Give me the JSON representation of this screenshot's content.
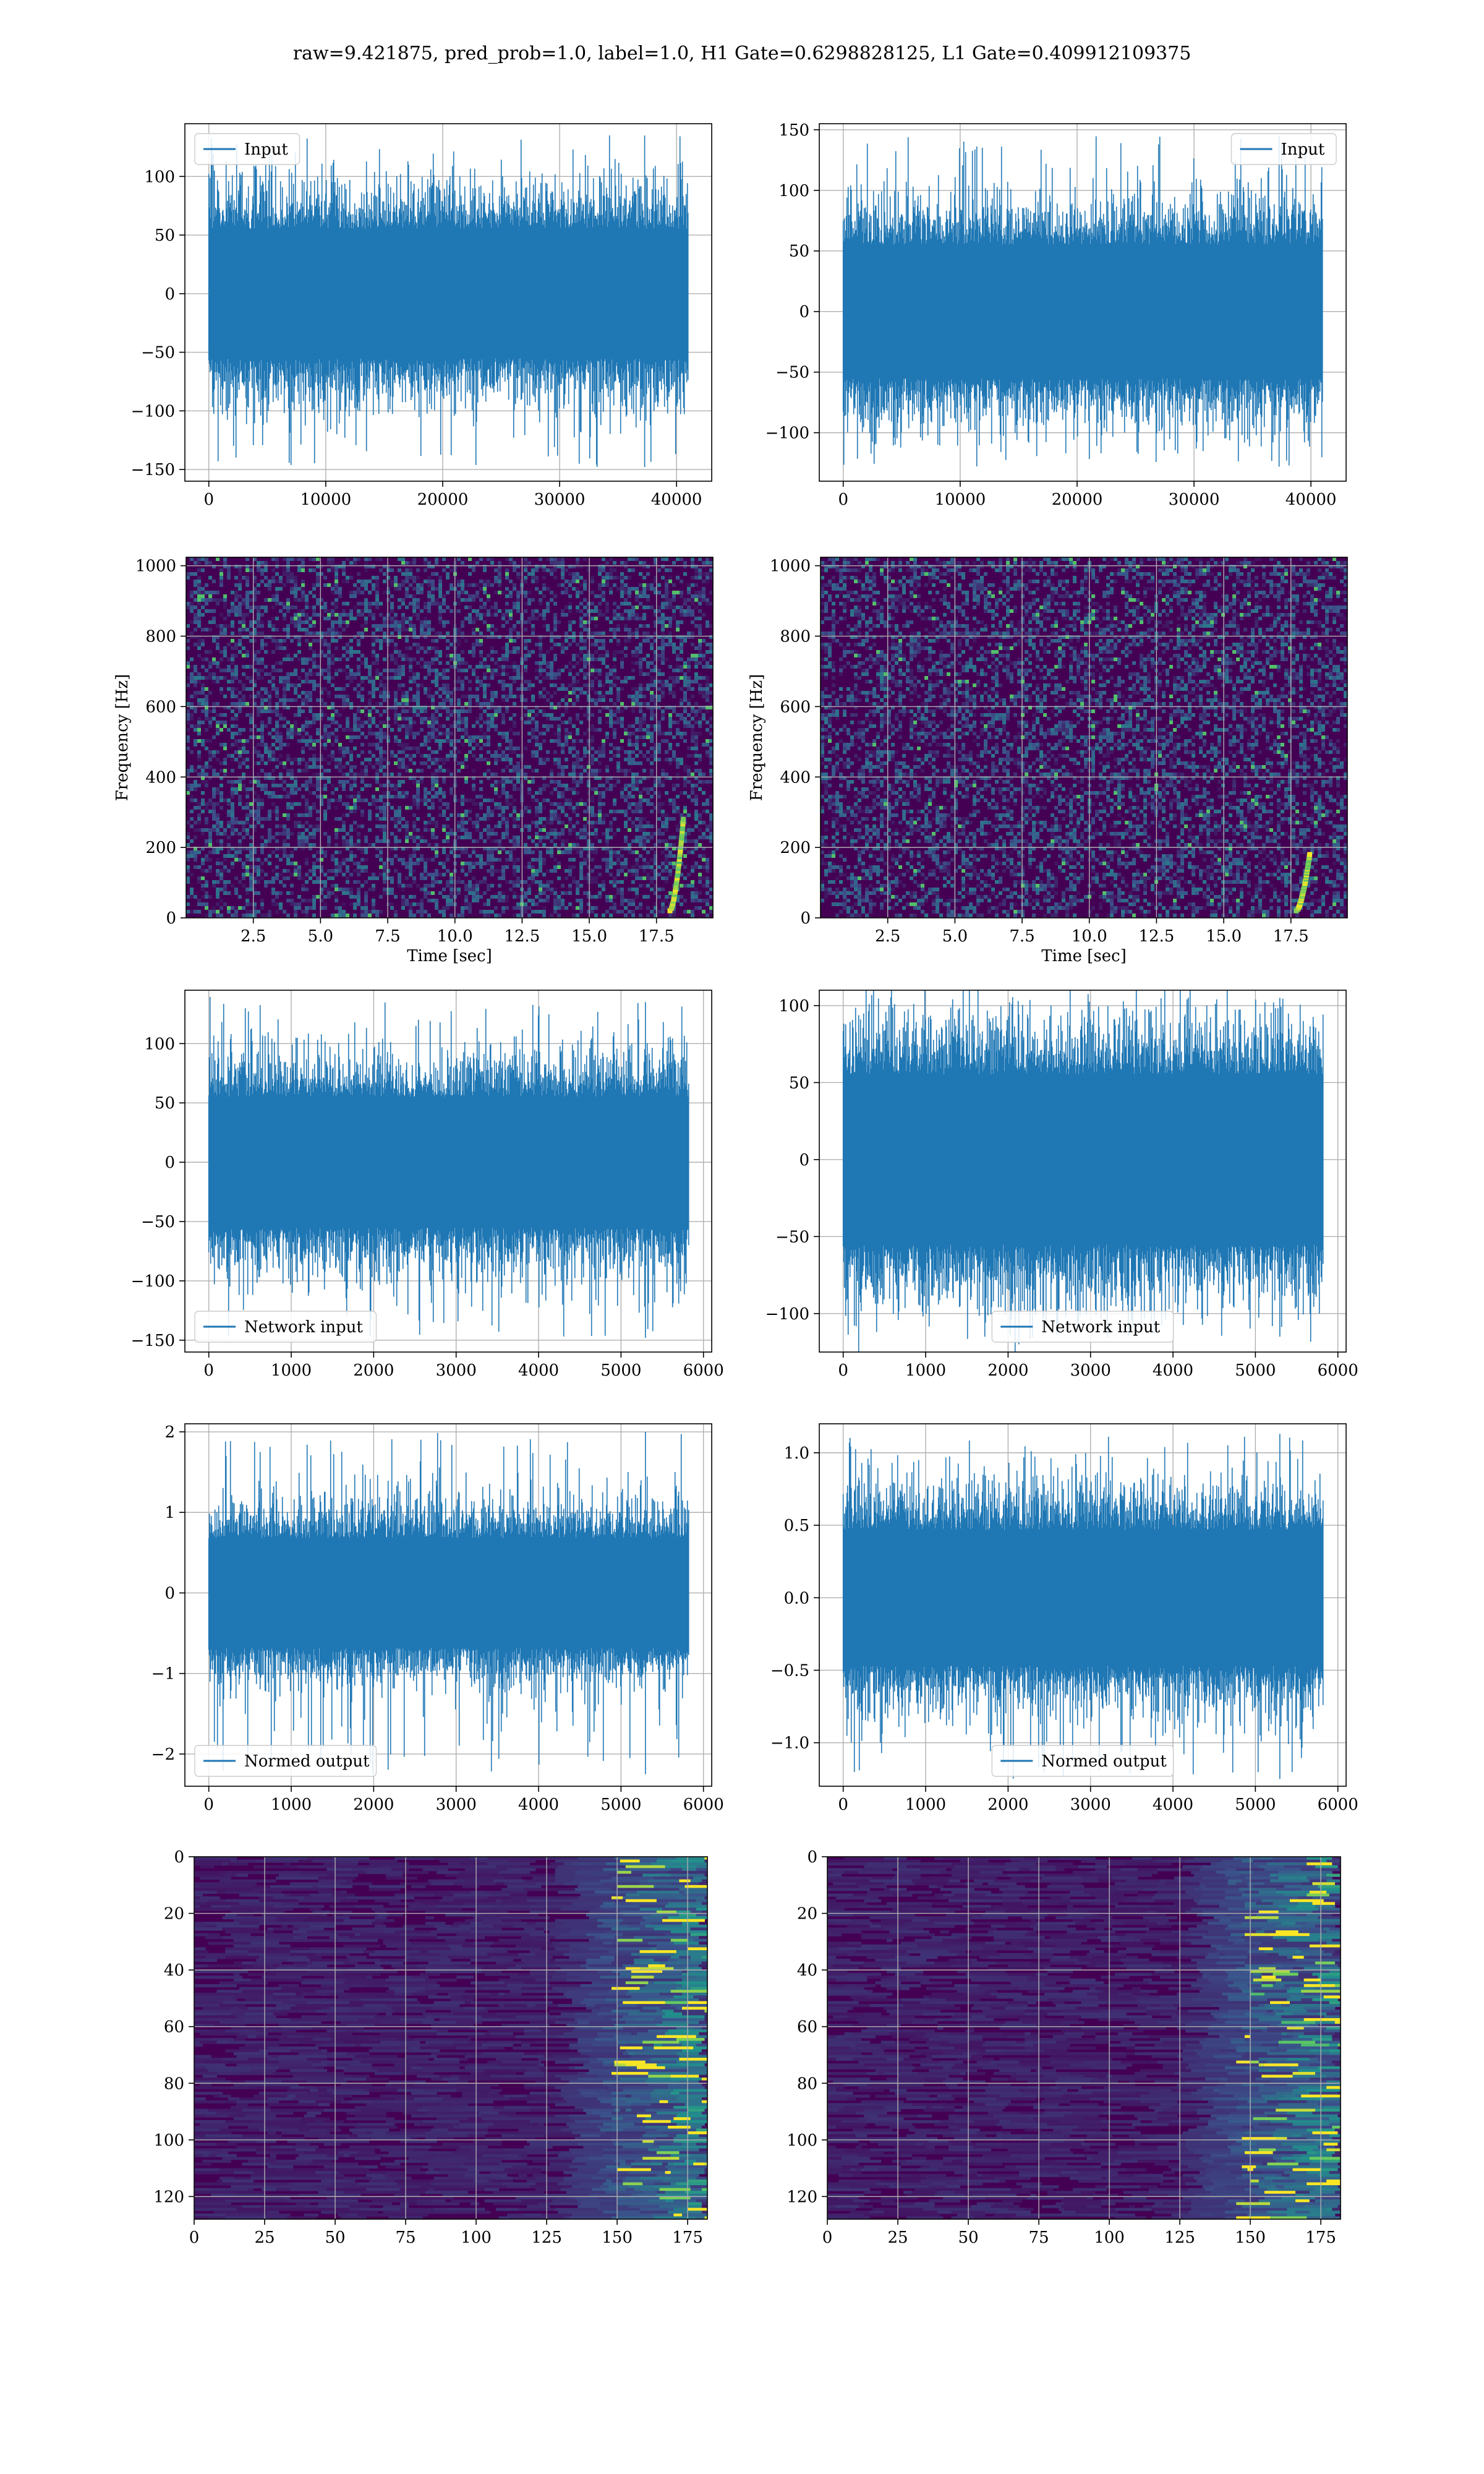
{
  "figure": {
    "suptitle": "raw=9.421875, pred_prob=1.0, label=1.0, H1 Gate=0.6298828125, L1 Gate=0.409912109375"
  },
  "colors": {
    "line": "#1f77b4",
    "grid": "#b0b0b0",
    "axes_edge": "#000000",
    "heat_low": "#440154",
    "heat_mid": "#21918c",
    "heat_high": "#fde725"
  },
  "chart_data": [
    {
      "id": "input-h1",
      "type": "line",
      "legend": "Input",
      "legend_loc": "upper left",
      "xlim": [
        -2048,
        43008
      ],
      "ylim": [
        -160,
        145
      ],
      "xticks": [
        0,
        10000,
        20000,
        30000,
        40000
      ],
      "yticks": [
        -150,
        -100,
        -50,
        0,
        50,
        100
      ],
      "x_range": [
        0,
        40960
      ],
      "envelope": {
        "typical": [
          -65,
          65
        ],
        "peaks": [
          -148,
          135
        ]
      },
      "grid": true
    },
    {
      "id": "input-l1",
      "type": "line",
      "legend": "Input",
      "legend_loc": "upper right",
      "xlim": [
        -2048,
        43008
      ],
      "ylim": [
        -140,
        155
      ],
      "xticks": [
        0,
        10000,
        20000,
        30000,
        40000
      ],
      "yticks": [
        -100,
        -50,
        0,
        50,
        100,
        150
      ],
      "x_range": [
        0,
        40960
      ],
      "envelope": {
        "typical": [
          -65,
          65
        ],
        "peaks": [
          -128,
          145
        ]
      },
      "grid": true
    },
    {
      "id": "spec-h1",
      "type": "heatmap",
      "xlabel": "Time [sec]",
      "ylabel": "Frequency [Hz]",
      "xlim": [
        0,
        19.6
      ],
      "ylim": [
        0,
        1024
      ],
      "xticks": [
        2.5,
        5.0,
        7.5,
        10.0,
        12.5,
        15.0,
        17.5
      ],
      "xtick_labels": [
        "2.5",
        "5.0",
        "7.5",
        "10.0",
        "12.5",
        "15.0",
        "17.5"
      ],
      "yticks": [
        0,
        200,
        400,
        600,
        800,
        1000
      ],
      "chirp": {
        "t": [
          18.0,
          18.5
        ],
        "f": [
          20,
          280
        ]
      },
      "grid": true
    },
    {
      "id": "spec-l1",
      "type": "heatmap",
      "xlabel": "Time [sec]",
      "ylabel": "Frequency [Hz]",
      "xlim": [
        0,
        19.6
      ],
      "ylim": [
        0,
        1024
      ],
      "xticks": [
        2.5,
        5.0,
        7.5,
        10.0,
        12.5,
        15.0,
        17.5
      ],
      "xtick_labels": [
        "2.5",
        "5.0",
        "7.5",
        "10.0",
        "12.5",
        "15.0",
        "17.5"
      ],
      "yticks": [
        0,
        200,
        400,
        600,
        800,
        1000
      ],
      "chirp": {
        "t": [
          17.7,
          18.2
        ],
        "f": [
          20,
          180
        ]
      },
      "grid": true
    },
    {
      "id": "netin-h1",
      "type": "line",
      "legend": "Network input",
      "legend_loc": "lower left",
      "xlim": [
        -290,
        6100
      ],
      "ylim": [
        -160,
        145
      ],
      "xticks": [
        0,
        1000,
        2000,
        3000,
        4000,
        5000,
        6000
      ],
      "yticks": [
        -150,
        -100,
        -50,
        0,
        50,
        100
      ],
      "x_range": [
        0,
        5820
      ],
      "envelope": {
        "typical": [
          -65,
          65
        ],
        "peaks": [
          -148,
          135
        ]
      },
      "grid": true
    },
    {
      "id": "netin-l1",
      "type": "line",
      "legend": "Network input",
      "legend_loc": "lower center",
      "xlim": [
        -290,
        6100
      ],
      "ylim": [
        -125,
        110
      ],
      "xticks": [
        0,
        1000,
        2000,
        3000,
        4000,
        5000,
        6000
      ],
      "yticks": [
        -100,
        -50,
        0,
        50,
        100
      ],
      "x_range": [
        0,
        5820
      ],
      "envelope": {
        "typical": [
          -65,
          65
        ],
        "peaks": [
          -115,
          105
        ]
      },
      "grid": true
    },
    {
      "id": "normed-h1",
      "type": "line",
      "legend": "Normed output",
      "legend_loc": "lower left",
      "xlim": [
        -290,
        6100
      ],
      "ylim": [
        -2.4,
        2.1
      ],
      "xticks": [
        0,
        1000,
        2000,
        3000,
        4000,
        5000,
        6000
      ],
      "yticks": [
        -2,
        -1,
        0,
        1,
        2
      ],
      "x_range": [
        0,
        5820
      ],
      "envelope": {
        "typical": [
          -0.8,
          0.8
        ],
        "peaks": [
          -2.25,
          2.0
        ]
      },
      "grid": true
    },
    {
      "id": "normed-l1",
      "type": "line",
      "legend": "Normed output",
      "legend_loc": "lower center",
      "xlim": [
        -290,
        6100
      ],
      "ylim": [
        -1.3,
        1.2
      ],
      "xticks": [
        0,
        1000,
        2000,
        3000,
        4000,
        5000,
        6000
      ],
      "yticks": [
        -1.0,
        -0.5,
        0.0,
        0.5,
        1.0
      ],
      "ytick_labels": [
        "−1.0",
        "−0.5",
        "0.0",
        "0.5",
        "1.0"
      ],
      "x_range": [
        0,
        5820
      ],
      "envelope": {
        "typical": [
          -0.55,
          0.55
        ],
        "peaks": [
          -1.25,
          1.13
        ]
      },
      "grid": true
    },
    {
      "id": "feat-h1",
      "type": "heatmap",
      "xlim": [
        0,
        182
      ],
      "ylim": [
        128,
        0
      ],
      "xticks": [
        0,
        25,
        50,
        75,
        100,
        125,
        150,
        175
      ],
      "yticks": [
        0,
        20,
        40,
        60,
        80,
        100,
        120
      ],
      "hot_columns": [
        148,
        178
      ],
      "grid": true
    },
    {
      "id": "feat-l1",
      "type": "heatmap",
      "xlim": [
        0,
        182
      ],
      "ylim": [
        128,
        0
      ],
      "xticks": [
        0,
        25,
        50,
        75,
        100,
        125,
        150,
        175
      ],
      "yticks": [
        0,
        20,
        40,
        60,
        80,
        100,
        120
      ],
      "hot_columns": [
        145,
        178
      ],
      "grid": true
    }
  ]
}
